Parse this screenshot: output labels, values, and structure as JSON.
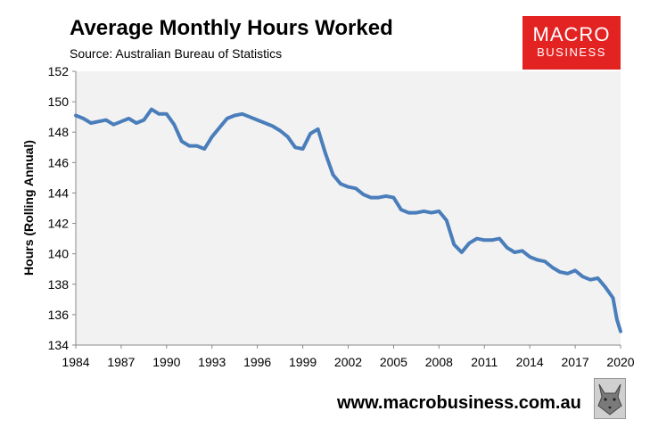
{
  "header": {
    "title": "Average Monthly Hours Worked",
    "subtitle": "Source: Australian Bureau of Statistics"
  },
  "logo": {
    "line1": "MACRO",
    "line2": "BUSINESS",
    "color": "#e32222"
  },
  "footer": {
    "url": "www.macrobusiness.com.au",
    "badge_icon": "wolf-icon"
  },
  "chart_data": {
    "type": "line",
    "title": "Average Monthly Hours Worked",
    "subtitle": "Source: Australian Bureau of Statistics",
    "xlabel": "",
    "ylabel": "Hours (Rolling Annual)",
    "xlim": [
      1984,
      2020
    ],
    "ylim": [
      134,
      152
    ],
    "x_ticks": [
      "1984",
      "1987",
      "1990",
      "1993",
      "1996",
      "1999",
      "2002",
      "2005",
      "2008",
      "2011",
      "2014",
      "2017",
      "2020"
    ],
    "y_ticks": [
      "134",
      "136",
      "138",
      "140",
      "142",
      "144",
      "146",
      "148",
      "150",
      "152"
    ],
    "grid": false,
    "plot_background": "#f2f2f2",
    "line_color": "#4a7ebb",
    "series": [
      {
        "x": [
          1984.0,
          1984.5,
          1985.0,
          1985.5,
          1986.0,
          1986.5,
          1987.0,
          1987.5,
          1988.0,
          1988.5,
          1989.0,
          1989.5,
          1990.0,
          1990.5,
          1991.0,
          1991.5,
          1992.0,
          1992.5,
          1993.0,
          1993.5,
          1994.0,
          1994.5,
          1995.0,
          1995.5,
          1996.0,
          1996.5,
          1997.0,
          1997.5,
          1998.0,
          1998.5,
          1999.0,
          1999.5,
          2000.0,
          2000.5,
          2001.0,
          2001.5,
          2002.0,
          2002.5,
          2003.0,
          2003.5,
          2004.0,
          2004.5,
          2005.0,
          2005.5,
          2006.0,
          2006.5,
          2007.0,
          2007.5,
          2008.0,
          2008.5,
          2009.0,
          2009.5,
          2010.0,
          2010.5,
          2011.0,
          2011.5,
          2012.0,
          2012.5,
          2013.0,
          2013.5,
          2014.0,
          2014.5,
          2015.0,
          2015.5,
          2016.0,
          2016.5,
          2017.0,
          2017.5,
          2018.0,
          2018.5,
          2019.0,
          2019.5,
          2019.75,
          2020.0
        ],
        "values": [
          149.1,
          148.9,
          148.6,
          148.7,
          148.8,
          148.5,
          148.7,
          148.9,
          148.6,
          148.8,
          149.5,
          149.2,
          149.2,
          148.5,
          147.4,
          147.1,
          147.1,
          146.9,
          147.7,
          148.3,
          148.9,
          149.1,
          149.2,
          149.0,
          148.8,
          148.6,
          148.4,
          148.1,
          147.7,
          147.0,
          146.9,
          147.9,
          148.2,
          146.6,
          145.2,
          144.6,
          144.4,
          144.3,
          143.9,
          143.7,
          143.7,
          143.8,
          143.7,
          142.9,
          142.7,
          142.7,
          142.8,
          142.7,
          142.8,
          142.2,
          140.6,
          140.1,
          140.7,
          141.0,
          140.9,
          140.9,
          141.0,
          140.4,
          140.1,
          140.2,
          139.8,
          139.6,
          139.5,
          139.1,
          138.8,
          138.7,
          138.9,
          138.5,
          138.3,
          138.4,
          137.8,
          137.1,
          135.7,
          134.9
        ]
      }
    ]
  }
}
